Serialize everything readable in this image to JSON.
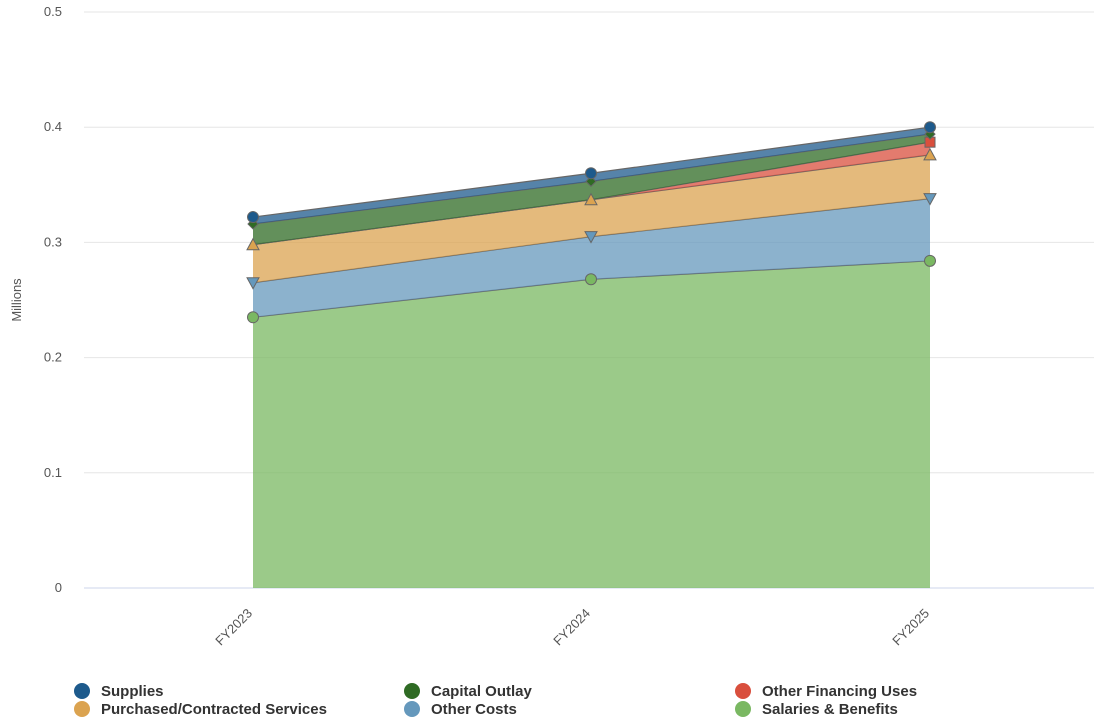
{
  "chart_data": {
    "type": "area",
    "stacked": true,
    "ylabel": "Millions",
    "ylim": [
      0,
      0.5
    ],
    "yticks": [
      0,
      0.1,
      0.2,
      0.3,
      0.4,
      0.5
    ],
    "ytick_labels": [
      "0",
      "0.1",
      "0.2",
      "0.3",
      "0.4",
      "0.5"
    ],
    "categories": [
      "FY2023",
      "FY2024",
      "FY2025"
    ],
    "grid": true,
    "legend_position": "bottom",
    "series": [
      {
        "name": "Salaries & Benefits",
        "values": [
          0.235,
          0.268,
          0.284
        ],
        "color": "#7ab862",
        "marker": "circle"
      },
      {
        "name": "Other Costs",
        "values": [
          0.03,
          0.037,
          0.054
        ],
        "color": "#6598bc",
        "marker": "triangle-down"
      },
      {
        "name": "Purchased/Contracted Services",
        "values": [
          0.033,
          0.032,
          0.038
        ],
        "color": "#dba350",
        "marker": "triangle"
      },
      {
        "name": "Other Financing Uses",
        "values": [
          0,
          0,
          0.011
        ],
        "color": "#d94f3d",
        "marker": "square"
      },
      {
        "name": "Capital Outlay",
        "values": [
          0.018,
          0.016,
          0.007
        ],
        "color": "#2f6b24",
        "marker": "diamond"
      },
      {
        "name": "Supplies",
        "values": [
          0.006,
          0.007,
          0.006
        ],
        "color": "#1d5a8c",
        "marker": "circle"
      }
    ]
  },
  "legend": [
    {
      "label": "Supplies",
      "color": "#1d5a8c"
    },
    {
      "label": "Capital Outlay",
      "color": "#2f6b24"
    },
    {
      "label": "Other Financing Uses",
      "color": "#d94f3d"
    },
    {
      "label": "Purchased/Contracted Services",
      "color": "#dba350"
    },
    {
      "label": "Other Costs",
      "color": "#6598bc"
    },
    {
      "label": "Salaries & Benefits",
      "color": "#7ab862"
    }
  ]
}
